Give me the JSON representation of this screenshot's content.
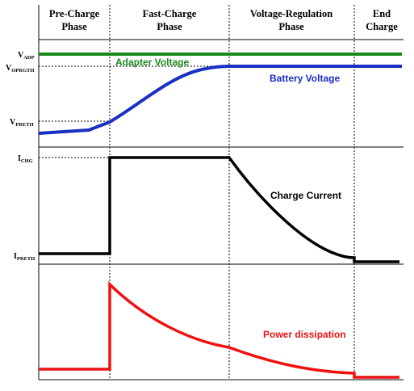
{
  "phases": [
    {
      "line1": "Pre-Charge",
      "line2": "Phase"
    },
    {
      "line1": "Fast-Charge",
      "line2": "Phase"
    },
    {
      "line1": "Voltage-Regulation",
      "line2": "Phase"
    },
    {
      "line1": "End",
      "line2": "Charge"
    }
  ],
  "y_labels": {
    "vadp": {
      "main": "V",
      "sub": "ADP"
    },
    "voprgth": {
      "main": "V",
      "sub": "OPRGTH"
    },
    "vpreth": {
      "main": "V",
      "sub": "PRETH"
    },
    "ichg": {
      "main": "I",
      "sub": "CHG"
    },
    "ipreth": {
      "main": "I",
      "sub": "PRETH"
    }
  },
  "curve_labels": {
    "adapter": "Adapter Voltage",
    "battery": "Battery Voltage",
    "current": "Charge Current",
    "power": "Power dissipation"
  },
  "colors": {
    "adapter": "#1a8a1a",
    "battery": "#1a2fc4",
    "current": "#000000",
    "power": "#ee1111",
    "axis": "#000000",
    "dotted": "#000000"
  }
}
